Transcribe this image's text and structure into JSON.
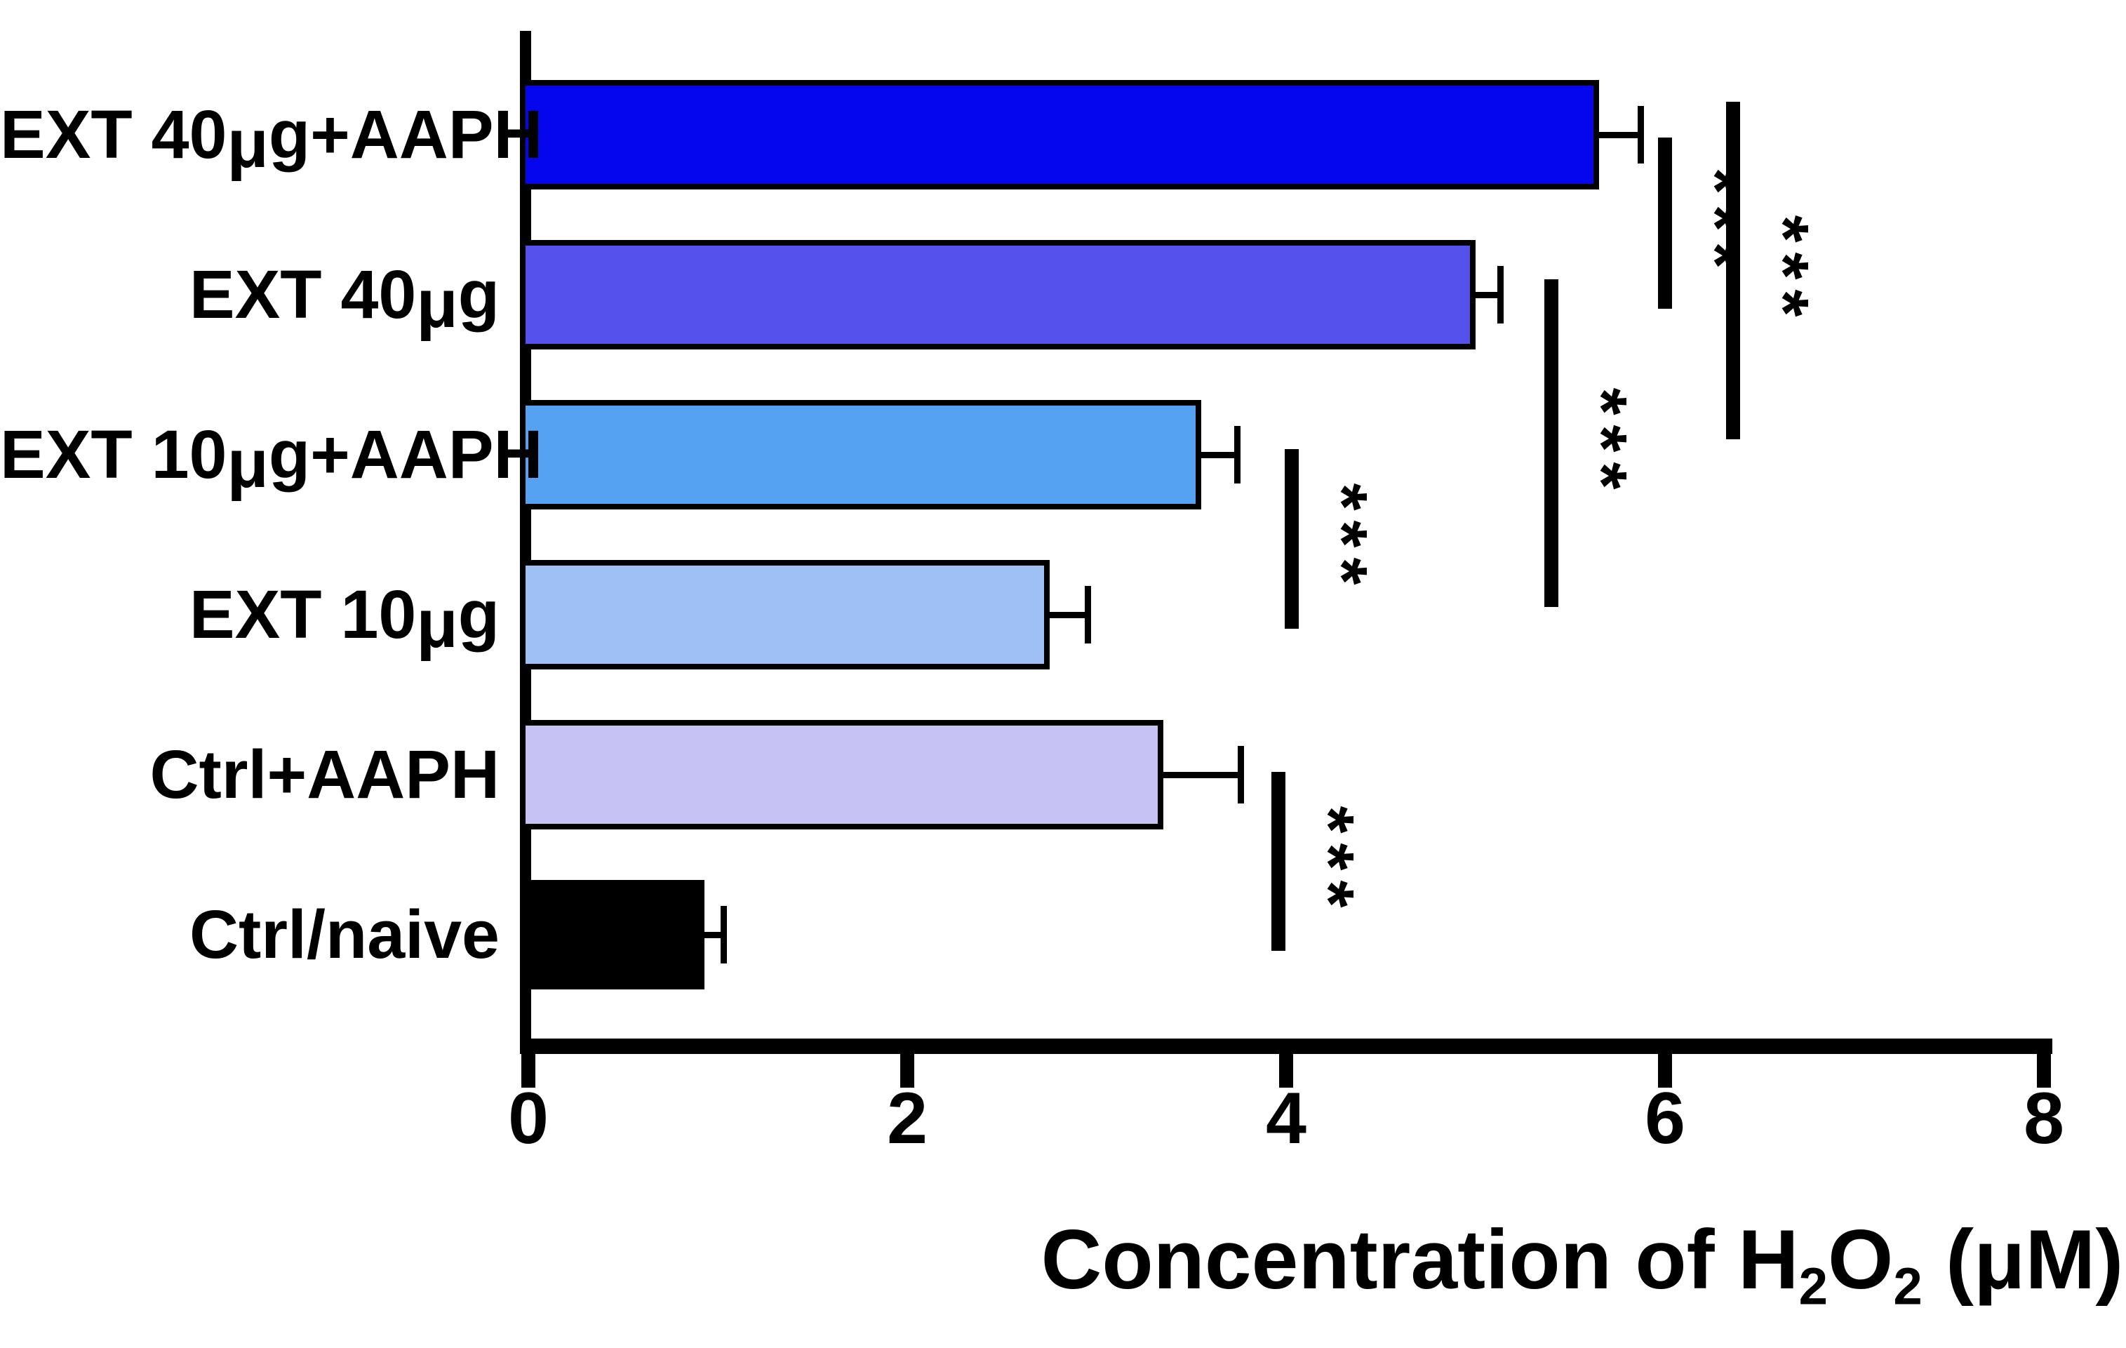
{
  "figure": {
    "background_color": "#FFFFFF",
    "ink_color": "#000000"
  },
  "chart_data": {
    "type": "bar",
    "orientation": "horizontal",
    "title": "",
    "xlabel": "Concentration of H2O2 (μM)",
    "xlabel_parts": [
      {
        "text": "Concentration of H",
        "sub": false
      },
      {
        "text": "2",
        "sub": true
      },
      {
        "text": "O",
        "sub": false
      },
      {
        "text": "2",
        "sub": true
      },
      {
        "text": " (μM)",
        "sub": false
      }
    ],
    "ylabel": "",
    "xlim": [
      0,
      8
    ],
    "x_ticks": [
      "0",
      "2",
      "4",
      "6",
      "8"
    ],
    "x_tick_values": [
      0,
      2,
      4,
      6,
      8
    ],
    "grid": false,
    "legend": null,
    "categories": [
      "EXT 40μg+AAPH",
      "EXT 40μg",
      "EXT 10μg+AAPH",
      "EXT 10μg",
      "Ctrl+AAPH",
      "Ctrl/naive"
    ],
    "values": [
      5.65,
      5.0,
      3.55,
      2.75,
      3.35,
      0.93
    ],
    "errors": [
      0.22,
      0.13,
      0.19,
      0.2,
      0.41,
      0.1
    ],
    "error_type": "upper-only",
    "bar_colors": [
      "#0505EE",
      "#5551EC",
      "#55A1F2",
      "#9FC0F3",
      "#C6C2F3",
      "#000000"
    ],
    "bar_border_color": "#000000",
    "error_bar_color": "#000000",
    "significance": [
      {
        "compare": [
          "EXT 40μg+AAPH",
          "EXT 40μg"
        ],
        "label": "***",
        "x": 6.0,
        "rows": [
          0,
          1
        ]
      },
      {
        "compare": [
          "EXT 40μg+AAPH",
          "EXT 10μg+AAPH"
        ],
        "label": "***",
        "x": 6.36,
        "rows": [
          0,
          2
        ]
      },
      {
        "compare": [
          "EXT 40μg",
          "EXT 10μg"
        ],
        "label": "***",
        "x": 5.4,
        "rows": [
          1,
          3
        ]
      },
      {
        "compare": [
          "EXT 10μg+AAPH",
          "EXT 10μg"
        ],
        "label": "***",
        "x": 4.03,
        "rows": [
          2,
          3
        ]
      },
      {
        "compare": [
          "Ctrl+AAPH",
          "Ctrl/naive"
        ],
        "label": "***",
        "x": 3.96,
        "rows": [
          4,
          5
        ]
      }
    ]
  }
}
